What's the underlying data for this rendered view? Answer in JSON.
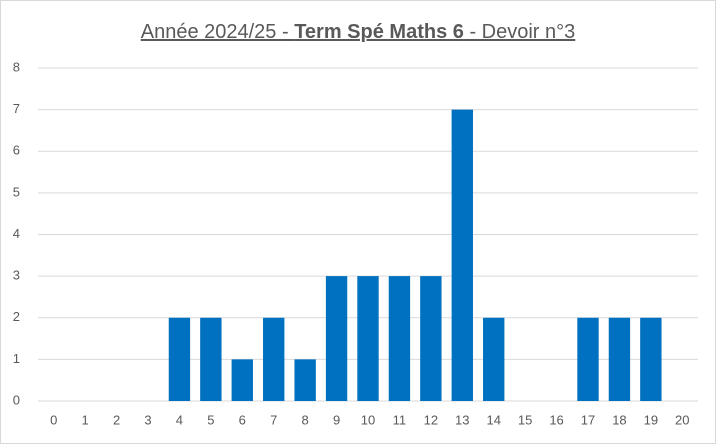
{
  "chart_data": {
    "type": "bar",
    "title": [
      "Année 2024/25 - ",
      "Term Spé Maths 6",
      " - Devoir n°3"
    ],
    "categories": [
      "0",
      "1",
      "2",
      "3",
      "4",
      "5",
      "6",
      "7",
      "8",
      "9",
      "10",
      "11",
      "12",
      "13",
      "14",
      "15",
      "16",
      "17",
      "18",
      "19",
      "20"
    ],
    "values": [
      0,
      0,
      0,
      0,
      2,
      2,
      1,
      2,
      1,
      3,
      3,
      3,
      3,
      7,
      2,
      0,
      0,
      2,
      2,
      2,
      0
    ],
    "color": "#0070c0",
    "ylim": [
      0,
      8
    ],
    "yticks": [
      0,
      1,
      2,
      3,
      4,
      5,
      6,
      7,
      8
    ],
    "grid": true
  }
}
